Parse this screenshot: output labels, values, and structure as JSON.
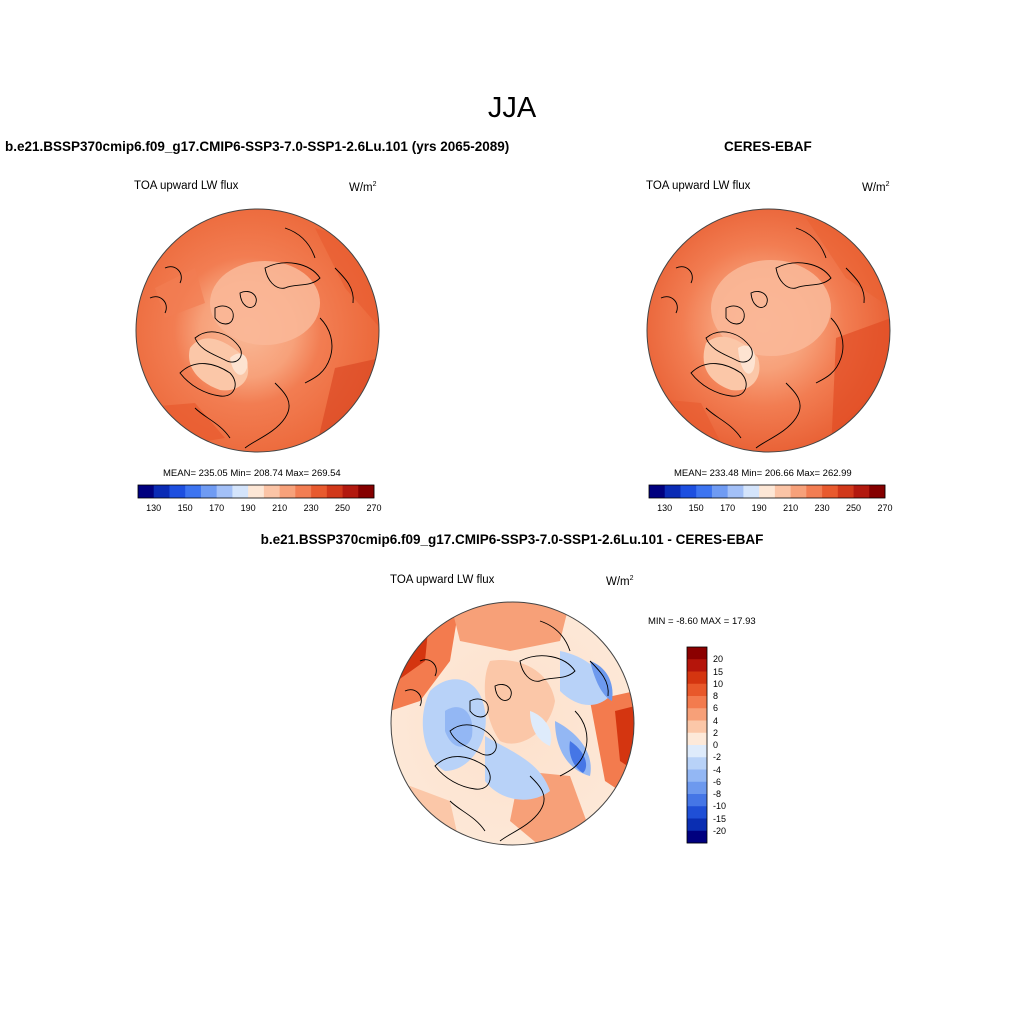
{
  "figure": {
    "season": "JJA"
  },
  "panels": {
    "model": {
      "title": "b.e21.BSSP370cmip6.f09_g17.CMIP6-SSP3-7.0-SSP1-2.6Lu.101 (yrs 2065-2089)",
      "field": "TOA upward LW flux",
      "units": "W/m",
      "units_exp": "2",
      "stats": "MEAN= 235.05  Min= 208.74  Max= 269.54",
      "colorbar_ticks": [
        "130",
        "150",
        "170",
        "190",
        "210",
        "230",
        "250",
        "270"
      ]
    },
    "obs": {
      "title": "CERES-EBAF",
      "field": "TOA upward LW flux",
      "units": "W/m",
      "units_exp": "2",
      "stats": "MEAN= 233.48  Min= 206.66  Max= 262.99",
      "colorbar_ticks": [
        "130",
        "150",
        "170",
        "190",
        "210",
        "230",
        "250",
        "270"
      ]
    },
    "diff": {
      "title": "b.e21.BSSP370cmip6.f09_g17.CMIP6-SSP3-7.0-SSP1-2.6Lu.101 - CERES-EBAF",
      "field": "TOA upward LW flux",
      "units": "W/m",
      "units_exp": "2",
      "stats": "MIN =  -8.60 MAX =  17.93",
      "colorbar_ticks": [
        "20",
        "15",
        "10",
        "8",
        "6",
        "4",
        "2",
        "0",
        "-2",
        "-4",
        "-6",
        "-8",
        "-10",
        "-15",
        "-20"
      ]
    }
  },
  "colors": {
    "abs_scale": [
      "#00007f",
      "#0a2bb5",
      "#1d4fe0",
      "#3d74f0",
      "#6f9bf3",
      "#a3c0f7",
      "#d4e4fb",
      "#fde7d6",
      "#fbc4a6",
      "#f7a17a",
      "#f27d52",
      "#e85a2e",
      "#d1381a",
      "#b2190f",
      "#850000"
    ],
    "diff_scale": [
      "#8b0000",
      "#b5150b",
      "#d43510",
      "#e8582a",
      "#f37b4e",
      "#f7a078",
      "#fbc7a8",
      "#fde9d9",
      "#deebfb",
      "#b8d2f8",
      "#93b7f4",
      "#6d99ee",
      "#4576e6",
      "#1f4fd6",
      "#0a2eb2",
      "#00007f"
    ],
    "land_line": "#000000"
  }
}
